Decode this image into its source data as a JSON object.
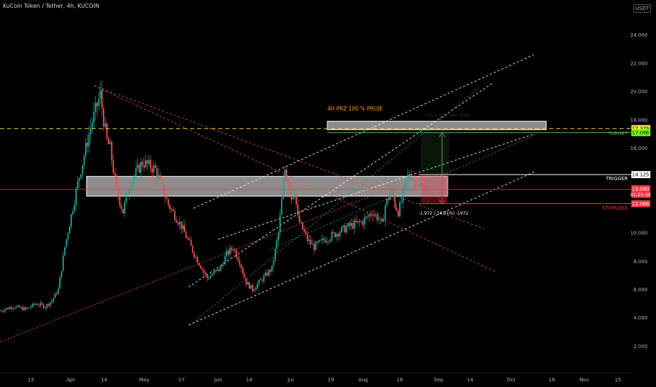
{
  "header": {
    "symbol": "KuCoin Token / Tether, 4h, KUCOIN",
    "currency_button": "USDT"
  },
  "colors": {
    "background": "#000000",
    "candle_up": "#26a69a",
    "candle_down": "#ef5350",
    "target_green": "#4caf50",
    "stop_red": "#f23645",
    "projection_orange": "#ff9800",
    "label_yellow": "#ffeb3b",
    "label_green": "#76ff03",
    "label_red": "#ef5350"
  },
  "annotations": {
    "projection_label": "4H PRZ 100 % PROJE",
    "range_label": "3.059 (21.73%) 3059",
    "drop_label": "-1.972 (-14.01%) -1972",
    "target_label": "TARGET",
    "trigger_label": "TRIGGER",
    "stoploss_label": "STOPLOSS"
  },
  "price_labels": {
    "yellow": "17.379",
    "green": "17.096",
    "trigger": "14.125",
    "current": "13.080",
    "countdown": "01:25:39",
    "stoploss": "12.066"
  },
  "chart_data": {
    "type": "candlestick",
    "title": "KuCoin Token / Tether, 4h, KUCOIN",
    "y_axis": {
      "ticks": [
        "24.000",
        "22.000",
        "20.000",
        "18.000",
        "16.000",
        "14.000",
        "12.000",
        "10.000",
        "8.000",
        "6.000",
        "4.000",
        "2.000"
      ],
      "ylim": [
        0.6,
        25.5
      ],
      "position": "right"
    },
    "x_axis": {
      "ticks": [
        "15",
        "Apr",
        "14",
        "May",
        "17",
        "Jun",
        "14",
        "Jul",
        "19",
        "Aug",
        "16",
        "Sep",
        "14",
        "Oct",
        "18",
        "Nov",
        "15"
      ]
    },
    "price_path": {
      "x": [
        0,
        4,
        8,
        11,
        14,
        16,
        18,
        20,
        24,
        28,
        31,
        32,
        33,
        34,
        35,
        36,
        38,
        40,
        44,
        48,
        52,
        56,
        60,
        64,
        68,
        70,
        72,
        74,
        76,
        78,
        80,
        82,
        84,
        86,
        88,
        89,
        90,
        91,
        92,
        93,
        95,
        97,
        100,
        104,
        108,
        112,
        115,
        117,
        118,
        119,
        120,
        121,
        122,
        123,
        124,
        125,
        126,
        127,
        128,
        129,
        130,
        131
      ],
      "y": [
        4.5,
        4.8,
        4.6,
        5.0,
        4.8,
        5.2,
        6.0,
        9.0,
        13.5,
        17.5,
        19.8,
        18.0,
        16.5,
        16.0,
        14.5,
        13.0,
        11.5,
        13.5,
        15.0,
        14.5,
        12.0,
        10.5,
        8.5,
        6.8,
        7.5,
        8.5,
        9.0,
        8.0,
        6.5,
        6.0,
        6.5,
        7.0,
        7.5,
        10.0,
        14.5,
        13.5,
        12.5,
        13.0,
        11.0,
        10.5,
        9.5,
        9.0,
        9.5,
        10.0,
        10.5,
        10.8,
        11.5,
        11.0,
        10.5,
        12.0,
        12.5,
        13.0,
        12.0,
        11.5,
        12.2,
        13.2,
        14.0,
        14.2,
        13.8,
        13.5,
        13.3,
        13.08
      ]
    },
    "levels": {
      "projection": 17.379,
      "target": 17.096,
      "trigger": 14.125,
      "current": 13.08,
      "stoploss": 12.066,
      "range_up": 3.059,
      "range_up_pct": 21.73,
      "range_down": -1.972,
      "range_down_pct": -14.01
    },
    "zones": [
      {
        "name": "support-resistance-zone",
        "ymin": 12.6,
        "ymax": 14.0
      },
      {
        "name": "prz-projection-zone",
        "ymin": 17.3,
        "ymax": 17.9
      }
    ]
  }
}
